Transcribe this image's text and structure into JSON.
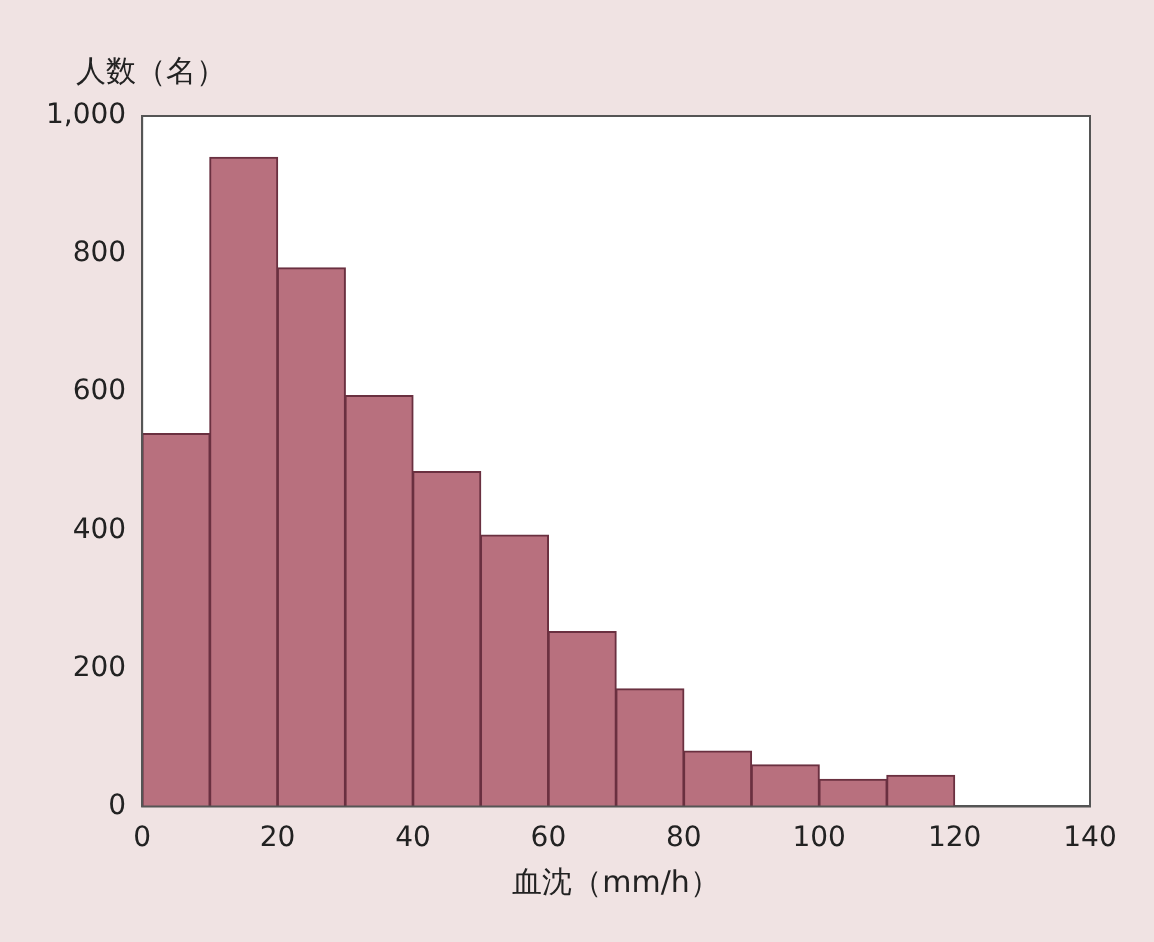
{
  "chart_data": {
    "type": "histogram",
    "xlabel": "血沈（mm/h）",
    "ylabel": "人数（名）",
    "bins": [
      0,
      10,
      20,
      30,
      40,
      50,
      60,
      70,
      80,
      90,
      100,
      110,
      120
    ],
    "values": [
      540,
      940,
      780,
      595,
      485,
      393,
      253,
      170,
      80,
      60,
      39,
      45
    ],
    "color": "#b8707e",
    "xlim": [
      0,
      140
    ],
    "xticks": [
      0,
      20,
      40,
      60,
      80,
      100,
      120,
      140
    ],
    "ylim": [
      0,
      1000
    ],
    "yticks": [
      0,
      200,
      400,
      600,
      800,
      {
        "value": 1000,
        "label": "1,000"
      }
    ],
    "grid": false,
    "legend": false
  }
}
